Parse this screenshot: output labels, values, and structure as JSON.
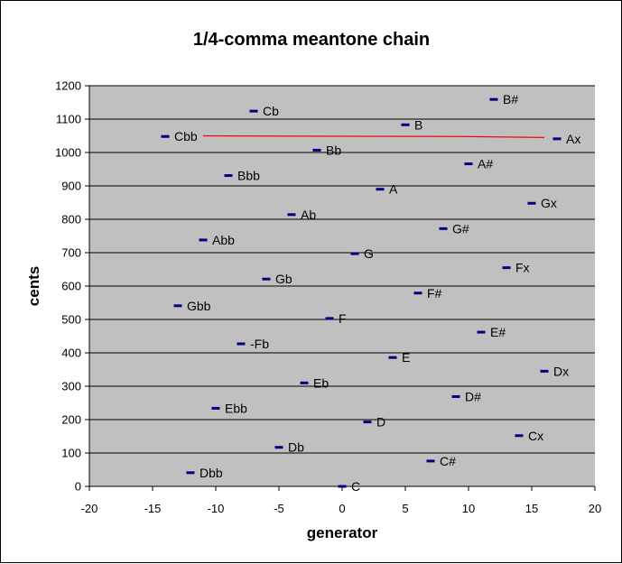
{
  "chart_data": {
    "type": "scatter",
    "title": "1/4-comma meantone chain",
    "xlabel": "generator",
    "ylabel": "cents",
    "xlim": [
      -20,
      20
    ],
    "ylim": [
      0,
      1200
    ],
    "x_ticks": [
      -20,
      -15,
      -10,
      -5,
      0,
      5,
      10,
      15,
      20
    ],
    "y_ticks": [
      0,
      100,
      200,
      300,
      400,
      500,
      600,
      700,
      800,
      900,
      1000,
      1100,
      1200
    ],
    "grid": "horizontal",
    "legend": "none",
    "colors": {
      "plot_bg": "#c0c0c0",
      "marker": "#000080",
      "line": "#ff0000",
      "grid": "#000000"
    },
    "points": [
      {
        "x": -14,
        "y": 1048,
        "label": "Cbb"
      },
      {
        "x": -13,
        "y": 541,
        "label": "Gbb"
      },
      {
        "x": -12,
        "y": 41,
        "label": "Dbb"
      },
      {
        "x": -11,
        "y": 738,
        "label": "Abb"
      },
      {
        "x": -10,
        "y": 234,
        "label": "Ebb"
      },
      {
        "x": -9,
        "y": 931,
        "label": "Bbb"
      },
      {
        "x": -8,
        "y": 427,
        "label": "-Fb"
      },
      {
        "x": -7,
        "y": 1124,
        "label": "Cb"
      },
      {
        "x": -6,
        "y": 621,
        "label": "Gb"
      },
      {
        "x": -5,
        "y": 117,
        "label": "Db"
      },
      {
        "x": -4,
        "y": 814,
        "label": "Ab"
      },
      {
        "x": -3,
        "y": 310,
        "label": "Eb"
      },
      {
        "x": -2,
        "y": 1007,
        "label": "Bb"
      },
      {
        "x": -1,
        "y": 503,
        "label": "F"
      },
      {
        "x": 0,
        "y": 0,
        "label": "C"
      },
      {
        "x": 1,
        "y": 697,
        "label": "G"
      },
      {
        "x": 2,
        "y": 193,
        "label": "D"
      },
      {
        "x": 3,
        "y": 890,
        "label": "A"
      },
      {
        "x": 4,
        "y": 386,
        "label": "E"
      },
      {
        "x": 5,
        "y": 1083,
        "label": "B"
      },
      {
        "x": 6,
        "y": 579,
        "label": "F#"
      },
      {
        "x": 7,
        "y": 76,
        "label": "C#"
      },
      {
        "x": 8,
        "y": 772,
        "label": "G#"
      },
      {
        "x": 9,
        "y": 269,
        "label": "D#"
      },
      {
        "x": 10,
        "y": 966,
        "label": "A#"
      },
      {
        "x": 11,
        "y": 462,
        "label": "E#"
      },
      {
        "x": 12,
        "y": 1159,
        "label": "B#"
      },
      {
        "x": 13,
        "y": 655,
        "label": "Fx"
      },
      {
        "x": 14,
        "y": 152,
        "label": "Cx"
      },
      {
        "x": 15,
        "y": 848,
        "label": "Gx"
      },
      {
        "x": 16,
        "y": 345,
        "label": "Dx"
      },
      {
        "x": 17,
        "y": 1041,
        "label": "Ax"
      }
    ],
    "line": [
      {
        "x": -11,
        "y": 1050
      },
      {
        "x": -4,
        "y": 1049
      },
      {
        "x": 9.5,
        "y": 1048
      },
      {
        "x": 16,
        "y": 1045
      }
    ]
  }
}
